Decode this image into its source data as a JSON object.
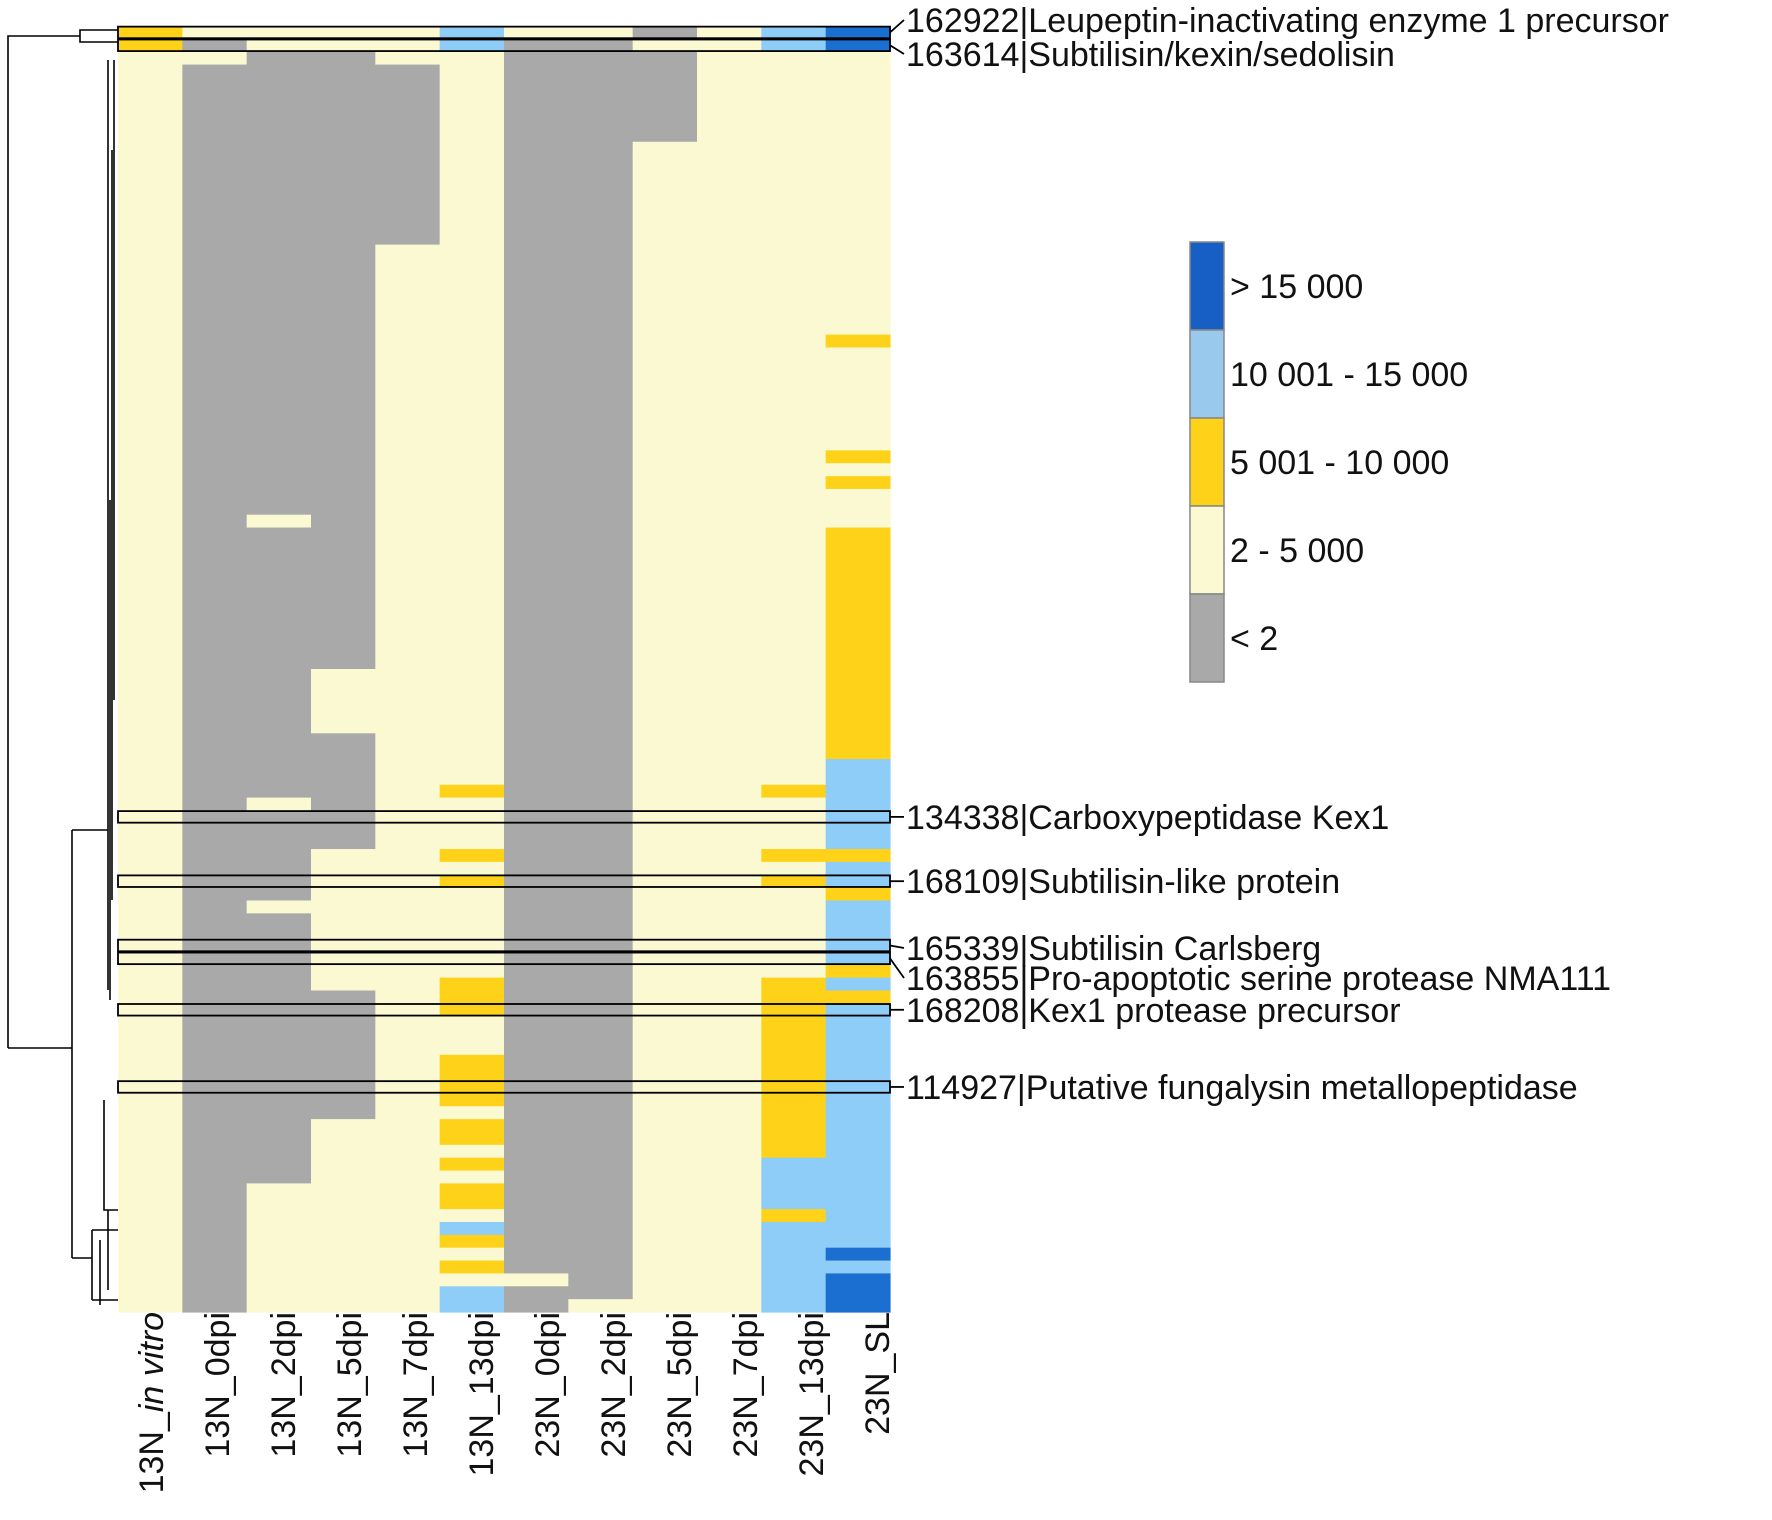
{
  "chart_data": {
    "type": "heatmap",
    "title": "",
    "xlabel": "",
    "ylabel": "",
    "columns": [
      {
        "prefix": "13N_",
        "rest": "in vitro",
        "italic_rest": true
      },
      {
        "prefix": "13N_0dpi",
        "rest": "",
        "italic_rest": false
      },
      {
        "prefix": "13N_2dpi",
        "rest": "",
        "italic_rest": false
      },
      {
        "prefix": "13N_5dpi",
        "rest": "",
        "italic_rest": false
      },
      {
        "prefix": "13N_7dpi",
        "rest": "",
        "italic_rest": false
      },
      {
        "prefix": "13N_13dpi",
        "rest": "",
        "italic_rest": false
      },
      {
        "prefix": "23N_0dpi",
        "rest": "",
        "italic_rest": false
      },
      {
        "prefix": "23N_2dpi",
        "rest": "",
        "italic_rest": false
      },
      {
        "prefix": "23N_5dpi",
        "rest": "",
        "italic_rest": false
      },
      {
        "prefix": "23N_7dpi",
        "rest": "",
        "italic_rest": false
      },
      {
        "prefix": "23N_13dpi",
        "rest": "",
        "italic_rest": false
      },
      {
        "prefix": "23N_SL",
        "rest": "",
        "italic_rest": false
      }
    ],
    "row_count": 100,
    "legend": {
      "position": "right",
      "bins": [
        {
          "label": "> 15 000",
          "color": "#175FC4"
        },
        {
          "label": "10 001 - 15 000",
          "color": "#99C9EC"
        },
        {
          "label": "5 001 - 10 000",
          "color": "#FFD21A"
        },
        {
          "label": "2 - 5 000",
          "color": "#FAF9D1"
        },
        {
          "label": "< 2",
          "color": "#A9A9A9"
        }
      ]
    },
    "cell_colors": [
      "#A9A9A9",
      "#FAF9D1",
      "#FFD21A",
      "#8ECDF7",
      "#1A6FD0"
    ],
    "cell_legend": [
      "< 2",
      "2 - 5 000",
      "5 001 - 10 000",
      "10 001 - 15 000",
      "> 15 000"
    ],
    "column_runs": [
      [
        [
          0,
          2,
          2
        ],
        [
          2,
          100,
          1
        ]
      ],
      [
        [
          0,
          1,
          1
        ],
        [
          1,
          2,
          0
        ],
        [
          2,
          3,
          1
        ],
        [
          3,
          100,
          0
        ]
      ],
      [
        [
          0,
          2,
          1
        ],
        [
          2,
          38,
          0
        ],
        [
          38,
          39,
          1
        ],
        [
          39,
          60,
          0
        ],
        [
          60,
          61,
          1
        ],
        [
          61,
          68,
          0
        ],
        [
          68,
          69,
          1
        ],
        [
          69,
          90,
          0
        ],
        [
          90,
          100,
          1
        ]
      ],
      [
        [
          0,
          2,
          1
        ],
        [
          2,
          50,
          0
        ],
        [
          50,
          55,
          1
        ],
        [
          55,
          64,
          0
        ],
        [
          64,
          75,
          1
        ],
        [
          75,
          85,
          0
        ],
        [
          85,
          100,
          1
        ]
      ],
      [
        [
          0,
          3,
          1
        ],
        [
          3,
          17,
          0
        ],
        [
          17,
          100,
          1
        ]
      ],
      [
        [
          0,
          2,
          3
        ],
        [
          2,
          59,
          1
        ],
        [
          59,
          60,
          2
        ],
        [
          60,
          64,
          1
        ],
        [
          64,
          65,
          2
        ],
        [
          65,
          66,
          1
        ],
        [
          66,
          67,
          2
        ],
        [
          67,
          74,
          1
        ],
        [
          74,
          77,
          2
        ],
        [
          77,
          80,
          1
        ],
        [
          80,
          84,
          2
        ],
        [
          84,
          85,
          1
        ],
        [
          85,
          87,
          2
        ],
        [
          87,
          88,
          1
        ],
        [
          88,
          89,
          2
        ],
        [
          89,
          90,
          1
        ],
        [
          90,
          92,
          2
        ],
        [
          92,
          93,
          1
        ],
        [
          93,
          94,
          3
        ],
        [
          94,
          95,
          2
        ],
        [
          95,
          96,
          1
        ],
        [
          96,
          97,
          2
        ],
        [
          97,
          98,
          1
        ],
        [
          98,
          100,
          3
        ]
      ],
      [
        [
          0,
          1,
          1
        ],
        [
          1,
          2,
          0
        ],
        [
          2,
          97,
          0
        ],
        [
          97,
          98,
          1
        ],
        [
          98,
          100,
          0
        ]
      ],
      [
        [
          0,
          1,
          1
        ],
        [
          1,
          2,
          0
        ],
        [
          2,
          99,
          0
        ],
        [
          99,
          100,
          1
        ]
      ],
      [
        [
          0,
          1,
          0
        ],
        [
          1,
          2,
          1
        ],
        [
          2,
          9,
          0
        ],
        [
          9,
          10,
          1
        ],
        [
          10,
          100,
          1
        ]
      ],
      [
        [
          0,
          2,
          1
        ],
        [
          2,
          100,
          1
        ]
      ],
      [
        [
          0,
          2,
          3
        ],
        [
          2,
          59,
          1
        ],
        [
          59,
          60,
          2
        ],
        [
          60,
          64,
          1
        ],
        [
          64,
          65,
          2
        ],
        [
          65,
          66,
          1
        ],
        [
          66,
          67,
          2
        ],
        [
          67,
          74,
          1
        ],
        [
          74,
          88,
          2
        ],
        [
          88,
          92,
          3
        ],
        [
          92,
          93,
          2
        ],
        [
          93,
          95,
          3
        ],
        [
          95,
          100,
          3
        ]
      ],
      [
        [
          0,
          2,
          4
        ],
        [
          2,
          24,
          1
        ],
        [
          24,
          25,
          2
        ],
        [
          25,
          33,
          1
        ],
        [
          33,
          34,
          2
        ],
        [
          34,
          35,
          1
        ],
        [
          35,
          36,
          2
        ],
        [
          36,
          39,
          1
        ],
        [
          39,
          57,
          2
        ],
        [
          57,
          64,
          3
        ],
        [
          64,
          65,
          2
        ],
        [
          65,
          67,
          3
        ],
        [
          67,
          68,
          2
        ],
        [
          68,
          73,
          3
        ],
        [
          73,
          74,
          2
        ],
        [
          74,
          75,
          3
        ],
        [
          75,
          76,
          2
        ],
        [
          76,
          95,
          3
        ],
        [
          95,
          96,
          4
        ],
        [
          96,
          97,
          3
        ],
        [
          97,
          100,
          4
        ]
      ]
    ],
    "highlighted_rows": [
      {
        "id": "162922",
        "name": "Leupeptin-inactivating enzyme 1 precursor",
        "row": 0
      },
      {
        "id": "163614",
        "name": "Subtilisin/kexin/sedolisin",
        "row": 1
      },
      {
        "id": "134338",
        "name": "Carboxypeptidase Kex1",
        "row": 61
      },
      {
        "id": "168109",
        "name": "Subtilisin-like protein",
        "row": 66
      },
      {
        "id": "165339",
        "name": "Subtilisin Carlsberg",
        "row": 71
      },
      {
        "id": "163855",
        "name": "Pro-apoptotic serine protease NMA111",
        "row": 72
      },
      {
        "id": "168208",
        "name": "Kex1 protease precursor",
        "row": 76
      },
      {
        "id": "114927",
        "name": "Putative fungalysin metallopeptidase",
        "row": 82
      }
    ]
  }
}
